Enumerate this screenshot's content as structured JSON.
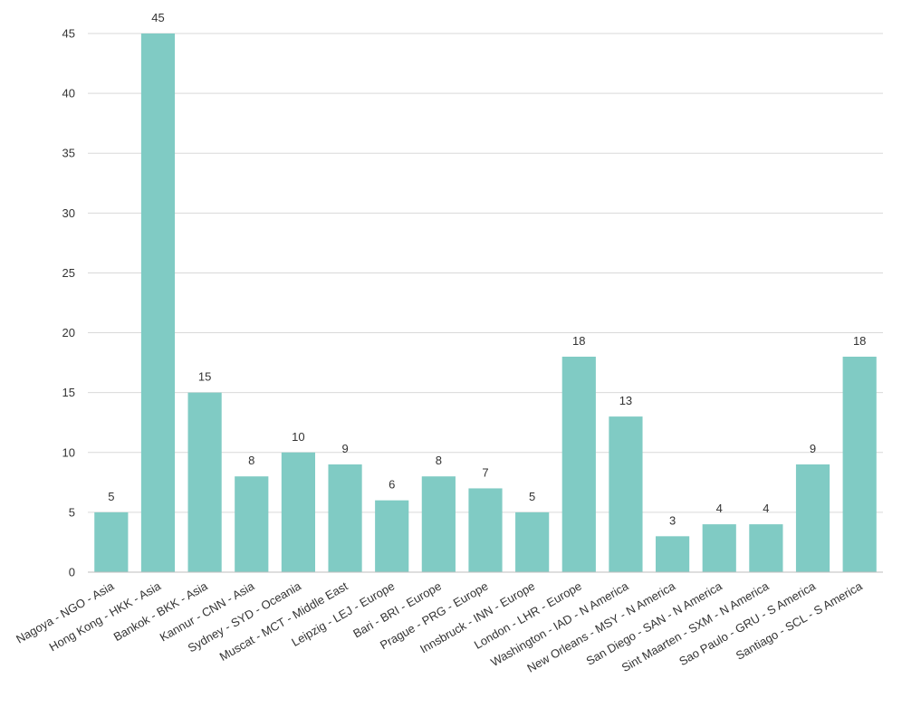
{
  "chart_data": {
    "type": "bar",
    "title": "",
    "xlabel": "",
    "ylabel": "",
    "ylim": [
      0,
      45
    ],
    "yticks": [
      0,
      5,
      10,
      15,
      20,
      25,
      30,
      35,
      40,
      45
    ],
    "grid": true,
    "bar_color": "#80cbc4",
    "categories": [
      "Nagoya - NGO - Asia",
      "Hong Kong - HKK - Asia",
      "Bankok - BKK - Asia",
      "Kannur - CNN - Asia",
      "Sydney - SYD - Oceania",
      "Muscat - MCT - Middle East",
      "Leipzig - LEJ - Europe",
      "Bari - BRI - Europe",
      "Prague - PRG - Europe",
      "Innsbruck - INN - Europe",
      "London - LHR - Europe",
      "Washington - IAD - N America",
      "New Orleans - MSY - N America",
      "San Diego - SAN - N America",
      "Sint Maarten - SXM - N America",
      "Sao Paulo - GRU - S America",
      "Santiago - SCL - S America"
    ],
    "values": [
      5,
      45,
      15,
      8,
      10,
      9,
      6,
      8,
      7,
      5,
      18,
      13,
      3,
      4,
      4,
      9,
      18
    ]
  }
}
